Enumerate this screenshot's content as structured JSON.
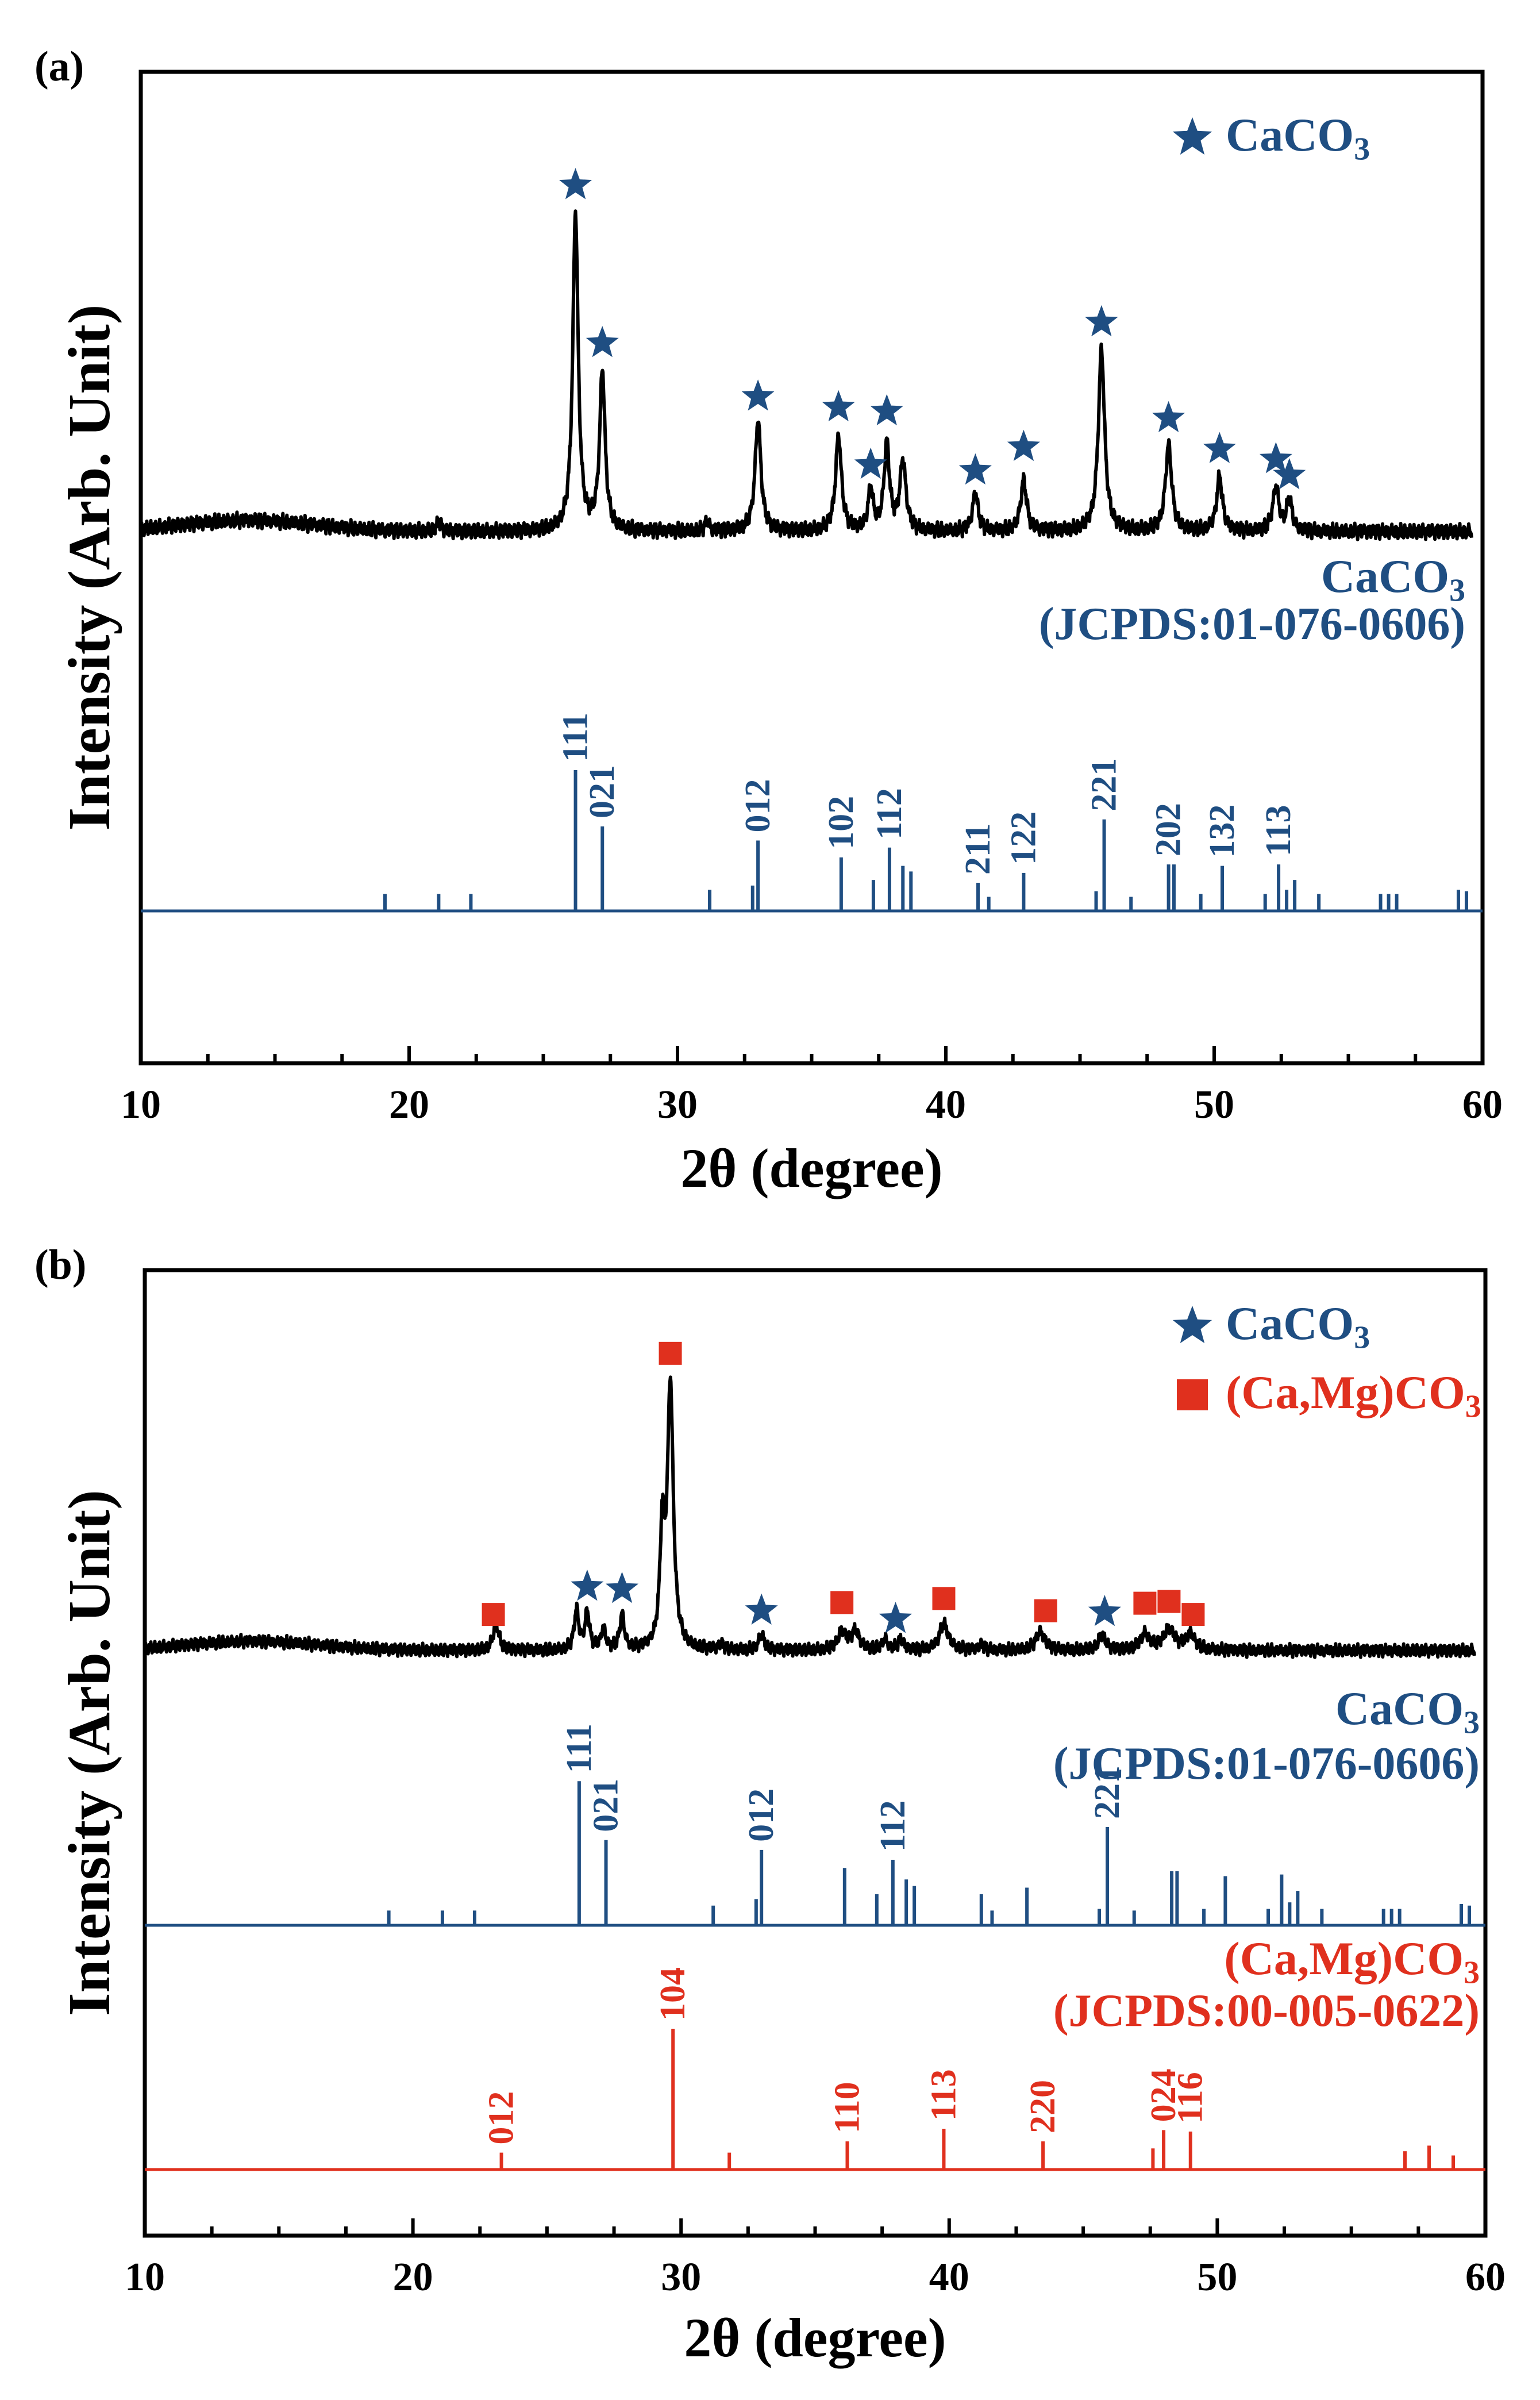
{
  "colors": {
    "black": "#000000",
    "blue": "#1f4e82",
    "red": "#e0301e"
  },
  "chart_data": [
    {
      "type": "line",
      "panel_label": "(a)",
      "xlabel": "2θ (degree)",
      "ylabel": "Intensity (Arb. Unit)",
      "xlim": [
        10,
        60
      ],
      "xticks": [
        "10",
        "20",
        "30",
        "40",
        "50",
        "60"
      ],
      "grid": false,
      "legend_position": "top-right",
      "legend": [
        {
          "marker": "star",
          "label_main": "CaCO",
          "label_sub": "3",
          "color": "#1f4e82"
        }
      ],
      "series": [
        {
          "kind": "measured",
          "color": "#000000",
          "baseline": 0.45,
          "peaks": [
            {
              "x": 26.2,
              "h": 1.0,
              "w": 0.12
            },
            {
              "x": 27.2,
              "h": 0.5,
              "w": 0.12
            },
            {
              "x": 33.0,
              "h": 0.35,
              "w": 0.13
            },
            {
              "x": 36.0,
              "h": 0.3,
              "w": 0.13
            },
            {
              "x": 37.2,
              "h": 0.13,
              "w": 0.11
            },
            {
              "x": 37.8,
              "h": 0.27,
              "w": 0.12
            },
            {
              "x": 38.4,
              "h": 0.22,
              "w": 0.13
            },
            {
              "x": 41.1,
              "h": 0.12,
              "w": 0.12
            },
            {
              "x": 42.9,
              "h": 0.16,
              "w": 0.13
            },
            {
              "x": 45.8,
              "h": 0.57,
              "w": 0.14
            },
            {
              "x": 48.3,
              "h": 0.27,
              "w": 0.14
            },
            {
              "x": 50.2,
              "h": 0.17,
              "w": 0.13
            },
            {
              "x": 52.3,
              "h": 0.14,
              "w": 0.13
            },
            {
              "x": 52.8,
              "h": 0.1,
              "w": 0.12
            },
            {
              "x": 31.1,
              "h": 0.03,
              "w": 0.1
            },
            {
              "x": 21.1,
              "h": 0.03,
              "w": 0.1
            }
          ],
          "star_markers": [
            26.2,
            27.2,
            33.0,
            36.0,
            37.2,
            37.8,
            41.1,
            42.9,
            45.8,
            48.3,
            50.2,
            52.3,
            52.8
          ]
        },
        {
          "kind": "reference",
          "name_main": "CaCO",
          "name_sub": "3",
          "name_card": "(JCPDS:01-076-0606)",
          "color": "#1f4e82",
          "sticks": [
            {
              "x": 19.1,
              "h": 0.12
            },
            {
              "x": 21.1,
              "h": 0.12
            },
            {
              "x": 22.3,
              "h": 0.12
            },
            {
              "x": 26.2,
              "h": 1.0,
              "label": "111"
            },
            {
              "x": 27.2,
              "h": 0.6,
              "label": "021"
            },
            {
              "x": 31.2,
              "h": 0.15
            },
            {
              "x": 32.8,
              "h": 0.18
            },
            {
              "x": 33.0,
              "h": 0.5,
              "label": "012"
            },
            {
              "x": 36.1,
              "h": 0.38,
              "label": "102"
            },
            {
              "x": 37.3,
              "h": 0.22
            },
            {
              "x": 37.9,
              "h": 0.45,
              "label": "112"
            },
            {
              "x": 38.4,
              "h": 0.32
            },
            {
              "x": 38.7,
              "h": 0.28
            },
            {
              "x": 41.2,
              "h": 0.2,
              "label": "211"
            },
            {
              "x": 41.6,
              "h": 0.1
            },
            {
              "x": 42.9,
              "h": 0.27,
              "label": "122"
            },
            {
              "x": 45.6,
              "h": 0.14
            },
            {
              "x": 45.9,
              "h": 0.65,
              "label": "221"
            },
            {
              "x": 46.9,
              "h": 0.1
            },
            {
              "x": 48.3,
              "h": 0.33,
              "label": "202"
            },
            {
              "x": 48.5,
              "h": 0.33
            },
            {
              "x": 49.5,
              "h": 0.12
            },
            {
              "x": 50.3,
              "h": 0.32,
              "label": "132"
            },
            {
              "x": 51.9,
              "h": 0.12
            },
            {
              "x": 52.4,
              "h": 0.33,
              "label": "113"
            },
            {
              "x": 52.7,
              "h": 0.15
            },
            {
              "x": 53.0,
              "h": 0.22
            },
            {
              "x": 53.9,
              "h": 0.12
            },
            {
              "x": 56.2,
              "h": 0.12
            },
            {
              "x": 56.5,
              "h": 0.12
            },
            {
              "x": 56.8,
              "h": 0.12
            },
            {
              "x": 59.1,
              "h": 0.15
            },
            {
              "x": 59.4,
              "h": 0.14
            }
          ]
        }
      ]
    },
    {
      "type": "line",
      "panel_label": "(b)",
      "xlabel": "2θ (degree)",
      "ylabel": "Intensity (Arb. Unit)",
      "xlim": [
        10,
        60
      ],
      "xticks": [
        "10",
        "20",
        "30",
        "40",
        "50",
        "60"
      ],
      "grid": false,
      "legend_position": "top-right",
      "legend": [
        {
          "marker": "star",
          "label_main": "CaCO",
          "label_sub": "3",
          "color": "#1f4e82"
        },
        {
          "marker": "square",
          "label_main": "(Ca,Mg)CO",
          "label_sub": "3",
          "color": "#e0301e"
        }
      ],
      "series": [
        {
          "kind": "measured",
          "color": "#000000",
          "baseline": 0.5,
          "peaks": [
            {
              "x": 23.1,
              "h": 0.1,
              "w": 0.13
            },
            {
              "x": 26.1,
              "h": 0.15,
              "w": 0.1
            },
            {
              "x": 26.5,
              "h": 0.14,
              "w": 0.1
            },
            {
              "x": 27.1,
              "h": 0.08,
              "w": 0.1
            },
            {
              "x": 27.8,
              "h": 0.13,
              "w": 0.1
            },
            {
              "x": 29.3,
              "h": 0.42,
              "w": 0.1
            },
            {
              "x": 29.6,
              "h": 1.0,
              "w": 0.13
            },
            {
              "x": 33.0,
              "h": 0.06,
              "w": 0.12
            },
            {
              "x": 36.0,
              "h": 0.07,
              "w": 0.18
            },
            {
              "x": 36.5,
              "h": 0.07,
              "w": 0.18
            },
            {
              "x": 37.6,
              "h": 0.04,
              "w": 0.12
            },
            {
              "x": 38.2,
              "h": 0.04,
              "w": 0.12
            },
            {
              "x": 39.8,
              "h": 0.1,
              "w": 0.2
            },
            {
              "x": 43.4,
              "h": 0.07,
              "w": 0.2
            },
            {
              "x": 45.7,
              "h": 0.06,
              "w": 0.15
            },
            {
              "x": 47.3,
              "h": 0.06,
              "w": 0.2
            },
            {
              "x": 48.2,
              "h": 0.08,
              "w": 0.25
            },
            {
              "x": 49.0,
              "h": 0.06,
              "w": 0.2
            },
            {
              "x": 41.2,
              "h": 0.02,
              "w": 0.12
            },
            {
              "x": 31.5,
              "h": 0.02,
              "w": 0.12
            }
          ],
          "star_markers": [
            26.5,
            27.8,
            33.0,
            38.0,
            45.8
          ],
          "square_markers": [
            23.0,
            29.6,
            36.0,
            39.8,
            43.6,
            47.3,
            48.2,
            49.1
          ]
        },
        {
          "kind": "reference",
          "name_main": "CaCO",
          "name_sub": "3",
          "name_card": "(JCPDS:01-076-0606)",
          "color": "#1f4e82",
          "sticks": [
            {
              "x": 19.1,
              "h": 0.09
            },
            {
              "x": 21.1,
              "h": 0.09
            },
            {
              "x": 22.3,
              "h": 0.09
            },
            {
              "x": 26.2,
              "h": 0.88,
              "label": "111"
            },
            {
              "x": 27.2,
              "h": 0.52,
              "label": "021"
            },
            {
              "x": 31.2,
              "h": 0.12
            },
            {
              "x": 32.8,
              "h": 0.16
            },
            {
              "x": 33.0,
              "h": 0.46,
              "label": "012"
            },
            {
              "x": 36.1,
              "h": 0.35
            },
            {
              "x": 37.3,
              "h": 0.19
            },
            {
              "x": 37.9,
              "h": 0.4,
              "label": "112"
            },
            {
              "x": 38.4,
              "h": 0.28
            },
            {
              "x": 38.7,
              "h": 0.24
            },
            {
              "x": 41.2,
              "h": 0.19
            },
            {
              "x": 41.6,
              "h": 0.09
            },
            {
              "x": 42.9,
              "h": 0.23
            },
            {
              "x": 45.6,
              "h": 0.1
            },
            {
              "x": 45.9,
              "h": 0.6,
              "label": "221"
            },
            {
              "x": 46.9,
              "h": 0.09
            },
            {
              "x": 48.3,
              "h": 0.33
            },
            {
              "x": 48.5,
              "h": 0.33
            },
            {
              "x": 49.5,
              "h": 0.1
            },
            {
              "x": 50.3,
              "h": 0.3
            },
            {
              "x": 51.9,
              "h": 0.1
            },
            {
              "x": 52.4,
              "h": 0.31
            },
            {
              "x": 52.7,
              "h": 0.14
            },
            {
              "x": 53.0,
              "h": 0.21
            },
            {
              "x": 53.9,
              "h": 0.1
            },
            {
              "x": 56.2,
              "h": 0.1
            },
            {
              "x": 56.5,
              "h": 0.1
            },
            {
              "x": 56.8,
              "h": 0.1
            },
            {
              "x": 59.1,
              "h": 0.13
            },
            {
              "x": 59.4,
              "h": 0.12
            }
          ]
        },
        {
          "kind": "reference",
          "name_main": "(Ca,Mg)CO",
          "name_sub": "3",
          "name_card": "(JCPDS:00-005-0622)",
          "color": "#e0301e",
          "sticks": [
            {
              "x": 23.3,
              "h": 0.12,
              "label": "012"
            },
            {
              "x": 29.7,
              "h": 1.0,
              "label": "104"
            },
            {
              "x": 31.8,
              "h": 0.12
            },
            {
              "x": 36.2,
              "h": 0.2,
              "label": "110"
            },
            {
              "x": 39.8,
              "h": 0.29,
              "label": "113"
            },
            {
              "x": 43.5,
              "h": 0.2,
              "label": "220"
            },
            {
              "x": 47.6,
              "h": 0.15
            },
            {
              "x": 48.0,
              "h": 0.28,
              "label": "024"
            },
            {
              "x": 49.0,
              "h": 0.27,
              "label": "116"
            },
            {
              "x": 57.0,
              "h": 0.13
            },
            {
              "x": 57.9,
              "h": 0.17
            },
            {
              "x": 58.8,
              "h": 0.1
            }
          ]
        }
      ]
    }
  ]
}
